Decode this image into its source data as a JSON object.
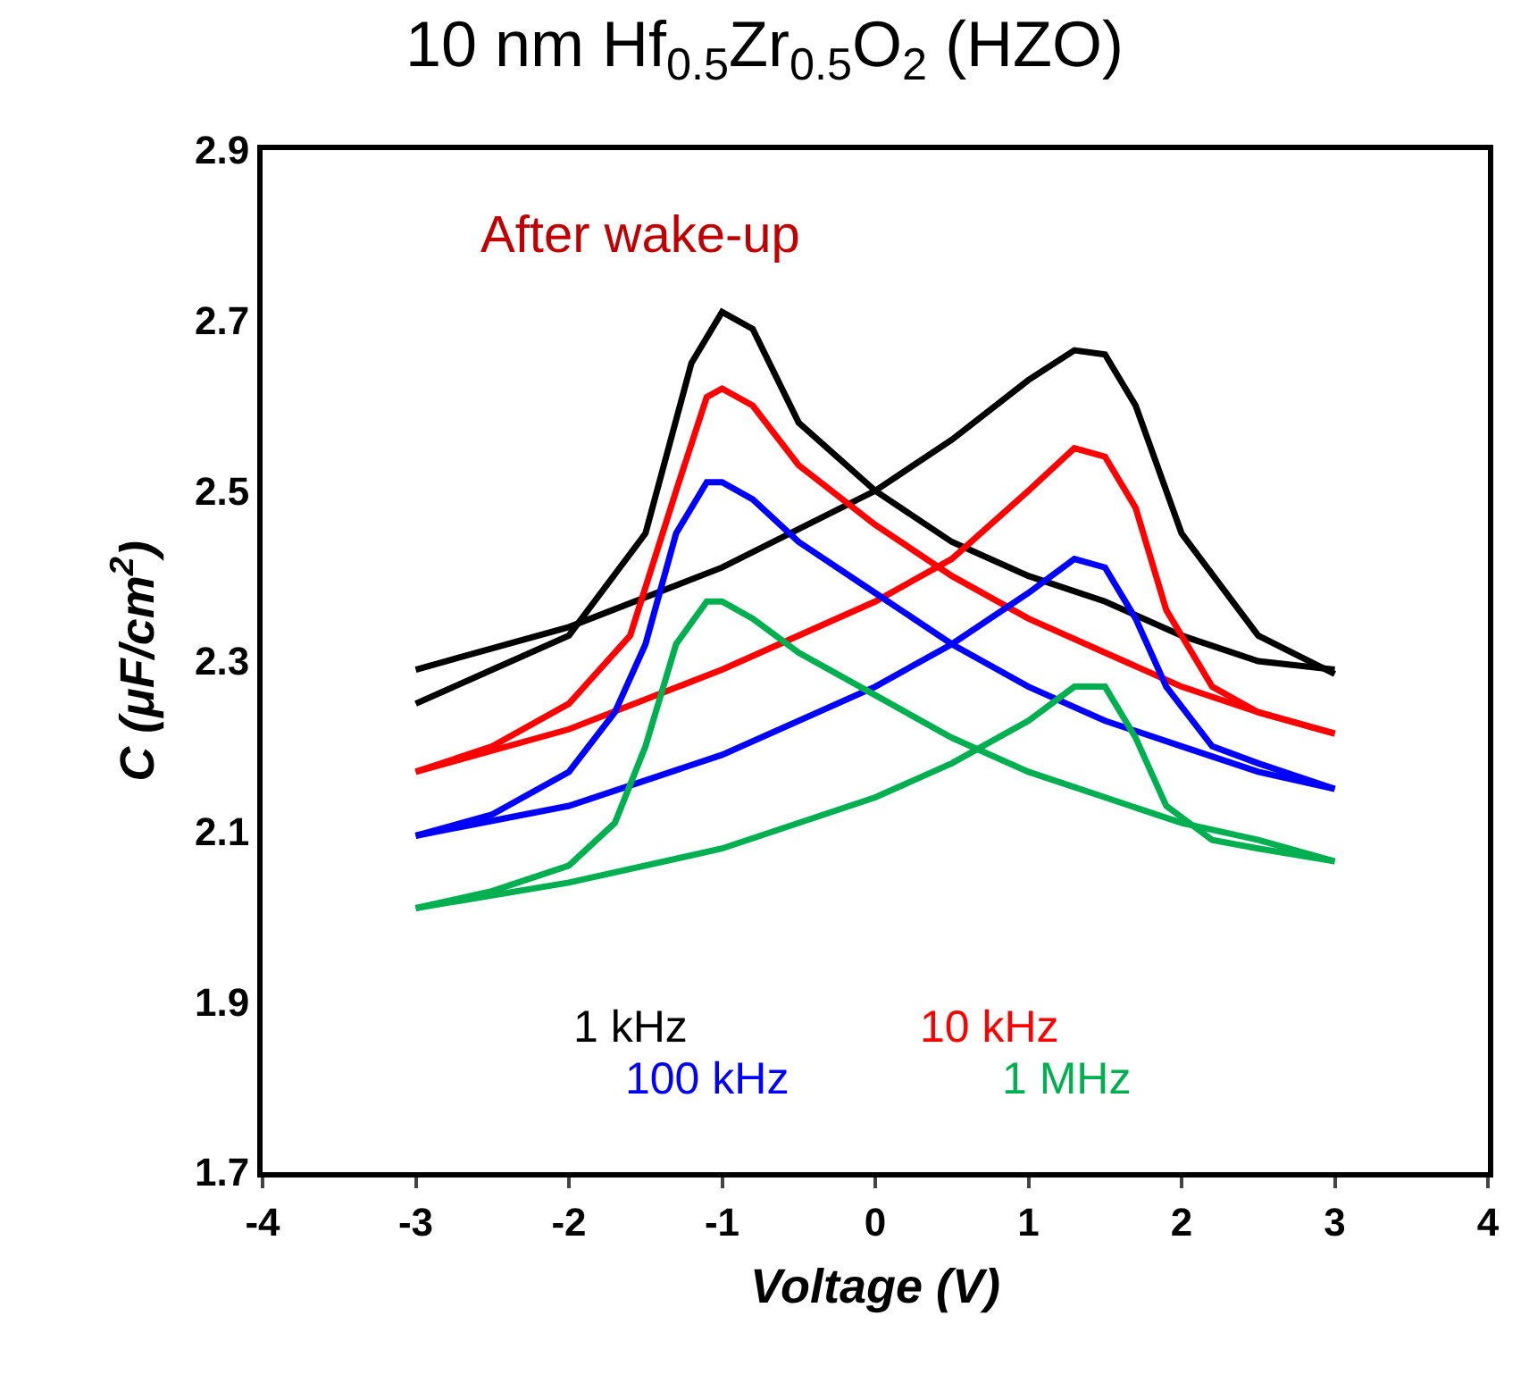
{
  "chart_data": {
    "type": "line",
    "title": "10 nm Hf$_{0.5}$Zr$_{0.5}$O$_{2}$ (HZO)",
    "xlabel": "Voltage (V)",
    "ylabel": "C (μF/cm$^{2}$)",
    "xlim": [
      -4,
      4
    ],
    "xticks": [
      -4,
      -3,
      -2,
      -1,
      0,
      1,
      2,
      3,
      4
    ],
    "ylim": [
      1.7,
      2.9
    ],
    "yticks": [
      1.7,
      1.9,
      2.1,
      2.3,
      2.5,
      2.7,
      2.9
    ],
    "legend": false,
    "marker": "none",
    "line_style": "solid",
    "annotations": [
      "After wake-up"
    ],
    "series": [
      {
        "name": "1 kHz",
        "color": "#000000",
        "x": [
          -3,
          -2.5,
          -2,
          -1.5,
          -1.2,
          -1,
          -0.8,
          -0.5,
          0,
          0.5,
          1,
          1.5,
          2,
          2.5,
          3
        ],
        "values": [
          2.25,
          2.29,
          2.33,
          2.45,
          2.65,
          2.71,
          2.69,
          2.58,
          2.5,
          2.44,
          2.4,
          2.37,
          2.33,
          2.3,
          2.29
        ]
      },
      {
        "color": "#000000",
        "x": [
          -3,
          -2,
          -1,
          0,
          0.5,
          1,
          1.3,
          1.5,
          1.7,
          2,
          2.5,
          3
        ],
        "values": [
          2.29,
          2.34,
          2.41,
          2.5,
          2.56,
          2.63,
          2.665,
          2.66,
          2.6,
          2.45,
          2.33,
          2.285
        ]
      },
      {
        "name": "10 kHz",
        "color": "#ff0000",
        "x": [
          -3,
          -2.5,
          -2,
          -1.6,
          -1.3,
          -1.1,
          -1,
          -0.8,
          -0.5,
          0,
          0.5,
          1,
          1.5,
          2,
          2.5,
          3
        ],
        "values": [
          2.17,
          2.2,
          2.25,
          2.33,
          2.5,
          2.61,
          2.62,
          2.6,
          2.53,
          2.46,
          2.4,
          2.35,
          2.31,
          2.27,
          2.24,
          2.215
        ]
      },
      {
        "color": "#ff0000",
        "x": [
          -3,
          -2,
          -1,
          0,
          0.5,
          1,
          1.3,
          1.5,
          1.7,
          1.9,
          2.2,
          2.5,
          3
        ],
        "values": [
          2.17,
          2.22,
          2.29,
          2.37,
          2.42,
          2.5,
          2.55,
          2.54,
          2.48,
          2.36,
          2.27,
          2.24,
          2.215
        ]
      },
      {
        "name": "100 kHz",
        "color": "#0000ff",
        "x": [
          -3,
          -2.5,
          -2,
          -1.7,
          -1.5,
          -1.3,
          -1.1,
          -1,
          -0.8,
          -0.5,
          0,
          0.5,
          1,
          1.5,
          2,
          2.5,
          3
        ],
        "values": [
          2.095,
          2.12,
          2.17,
          2.24,
          2.32,
          2.45,
          2.51,
          2.51,
          2.49,
          2.44,
          2.38,
          2.32,
          2.27,
          2.23,
          2.2,
          2.17,
          2.15
        ]
      },
      {
        "color": "#0000ff",
        "x": [
          -3,
          -2,
          -1,
          0,
          0.5,
          1,
          1.3,
          1.5,
          1.7,
          1.9,
          2.2,
          2.5,
          3
        ],
        "values": [
          2.095,
          2.13,
          2.19,
          2.27,
          2.32,
          2.38,
          2.42,
          2.41,
          2.35,
          2.27,
          2.2,
          2.18,
          2.15
        ]
      },
      {
        "name": "1 MHz",
        "color": "#00b050",
        "x": [
          -3,
          -2.5,
          -2,
          -1.7,
          -1.5,
          -1.3,
          -1.1,
          -1,
          -0.8,
          -0.5,
          0,
          0.5,
          1,
          1.5,
          2,
          2.5,
          3
        ],
        "values": [
          2.01,
          2.03,
          2.06,
          2.11,
          2.2,
          2.32,
          2.37,
          2.37,
          2.35,
          2.31,
          2.26,
          2.21,
          2.17,
          2.14,
          2.11,
          2.09,
          2.065
        ]
      },
      {
        "color": "#00b050",
        "x": [
          -3,
          -2,
          -1,
          0,
          0.5,
          1,
          1.3,
          1.5,
          1.7,
          1.9,
          2.2,
          2.5,
          3
        ],
        "values": [
          2.01,
          2.04,
          2.08,
          2.14,
          2.18,
          2.23,
          2.27,
          2.27,
          2.21,
          2.13,
          2.09,
          2.08,
          2.065
        ]
      }
    ]
  }
}
